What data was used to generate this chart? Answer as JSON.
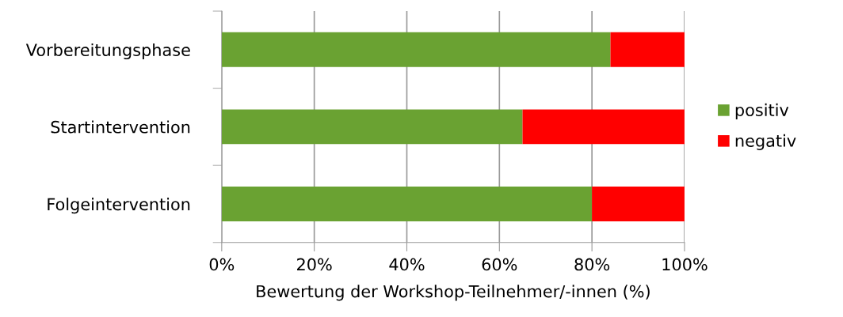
{
  "chart_data": {
    "type": "bar",
    "orientation": "horizontal",
    "stacked": true,
    "xlabel": "Bewertung der Workshop-Teilnehmer/-innen (%)",
    "categories": [
      "Vorbereitungsphase",
      "Startintervention",
      "Folgeintervention"
    ],
    "series": [
      {
        "name": "positiv",
        "color": "#6aa232",
        "values": [
          84,
          65,
          80
        ]
      },
      {
        "name": "negativ",
        "color": "#ff0000",
        "values": [
          16,
          35,
          20
        ]
      }
    ],
    "xlim": [
      0,
      100
    ],
    "xticks": [
      {
        "value": 0,
        "label": "0%"
      },
      {
        "value": 20,
        "label": "20%"
      },
      {
        "value": 40,
        "label": "40%"
      },
      {
        "value": 60,
        "label": "60%"
      },
      {
        "value": 80,
        "label": "80%"
      },
      {
        "value": 100,
        "label": "100%"
      }
    ],
    "grid": "x",
    "legend": "right"
  }
}
